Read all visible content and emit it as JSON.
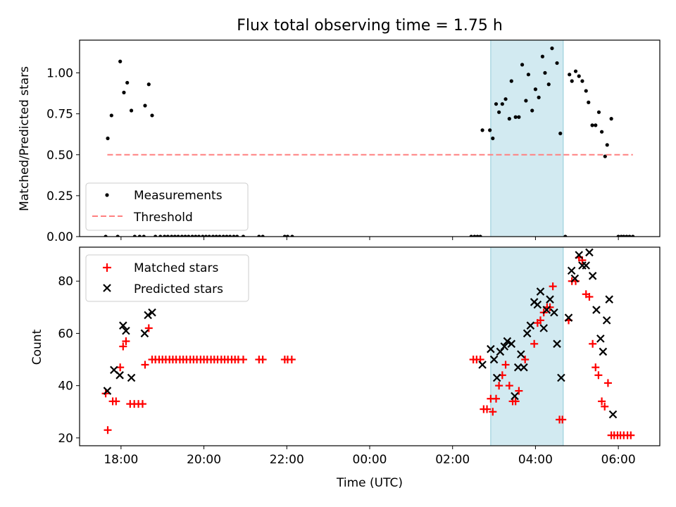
{
  "chart_data": [
    {
      "type": "scatter",
      "title": "Flux total observing time = 1.75 h",
      "xlabel": "",
      "ylabel": "Matched/Predicted stars",
      "x_unit": "hours of observing night, tick 18:00 = 18",
      "xlim": [
        17.0,
        31.0
      ],
      "ylim": [
        0.0,
        1.2
      ],
      "yticks": [
        0.0,
        0.25,
        0.5,
        0.75,
        1.0
      ],
      "ytick_labels": [
        "0.00",
        "0.25",
        "0.50",
        "0.75",
        "1.00"
      ],
      "shaded_region": {
        "x": [
          26.92,
          28.67
        ],
        "color": "#add8e6"
      },
      "legend": {
        "position": "lower-left",
        "entries": [
          "Measurements",
          "Threshold"
        ]
      },
      "series": [
        {
          "name": "Measurements",
          "marker": "dot",
          "color": "#000000",
          "points": [
            [
              17.63,
              0.0
            ],
            [
              17.92,
              0.0
            ],
            [
              18.33,
              0.0
            ],
            [
              18.45,
              0.0
            ],
            [
              18.55,
              0.0
            ],
            [
              18.83,
              0.0
            ],
            [
              18.95,
              0.0
            ],
            [
              19.05,
              0.0
            ],
            [
              19.13,
              0.0
            ],
            [
              19.22,
              0.0
            ],
            [
              19.3,
              0.0
            ],
            [
              19.38,
              0.0
            ],
            [
              19.47,
              0.0
            ],
            [
              19.55,
              0.0
            ],
            [
              19.63,
              0.0
            ],
            [
              19.72,
              0.0
            ],
            [
              19.8,
              0.0
            ],
            [
              19.88,
              0.0
            ],
            [
              19.97,
              0.0
            ],
            [
              20.05,
              0.0
            ],
            [
              20.13,
              0.0
            ],
            [
              20.22,
              0.0
            ],
            [
              20.3,
              0.0
            ],
            [
              20.38,
              0.0
            ],
            [
              20.47,
              0.0
            ],
            [
              20.55,
              0.0
            ],
            [
              20.63,
              0.0
            ],
            [
              20.72,
              0.0
            ],
            [
              20.8,
              0.0
            ],
            [
              20.95,
              0.0
            ],
            [
              21.33,
              0.0
            ],
            [
              21.42,
              0.0
            ],
            [
              21.95,
              0.0
            ],
            [
              22.02,
              0.0
            ],
            [
              22.13,
              0.0
            ],
            [
              26.45,
              0.0
            ],
            [
              26.53,
              0.0
            ],
            [
              26.6,
              0.0
            ],
            [
              26.67,
              0.0
            ],
            [
              28.72,
              0.0
            ],
            [
              30.0,
              0.0
            ],
            [
              30.07,
              0.0
            ],
            [
              30.13,
              0.0
            ],
            [
              30.2,
              0.0
            ],
            [
              30.27,
              0.0
            ],
            [
              30.35,
              0.0
            ],
            [
              17.68,
              0.6
            ],
            [
              17.77,
              0.74
            ],
            [
              17.98,
              1.07
            ],
            [
              18.07,
              0.88
            ],
            [
              18.15,
              0.94
            ],
            [
              18.25,
              0.77
            ],
            [
              18.58,
              0.8
            ],
            [
              18.67,
              0.93
            ],
            [
              18.75,
              0.74
            ],
            [
              26.72,
              0.65
            ],
            [
              26.9,
              0.65
            ],
            [
              26.97,
              0.6
            ],
            [
              27.05,
              0.81
            ],
            [
              27.12,
              0.76
            ],
            [
              27.2,
              0.81
            ],
            [
              27.28,
              0.84
            ],
            [
              27.37,
              0.72
            ],
            [
              27.42,
              0.95
            ],
            [
              27.52,
              0.73
            ],
            [
              27.6,
              0.73
            ],
            [
              27.68,
              1.05
            ],
            [
              27.77,
              0.83
            ],
            [
              27.83,
              0.99
            ],
            [
              27.92,
              0.77
            ],
            [
              28.0,
              0.9
            ],
            [
              28.08,
              0.85
            ],
            [
              28.17,
              1.1
            ],
            [
              28.23,
              1.0
            ],
            [
              28.32,
              0.93
            ],
            [
              28.4,
              1.15
            ],
            [
              28.52,
              1.06
            ],
            [
              28.6,
              0.63
            ],
            [
              28.82,
              0.99
            ],
            [
              28.88,
              0.95
            ],
            [
              28.97,
              1.01
            ],
            [
              29.05,
              0.98
            ],
            [
              29.13,
              0.95
            ],
            [
              29.22,
              0.89
            ],
            [
              29.28,
              0.82
            ],
            [
              29.37,
              0.68
            ],
            [
              29.45,
              0.68
            ],
            [
              29.53,
              0.76
            ],
            [
              29.6,
              0.64
            ],
            [
              29.68,
              0.49
            ],
            [
              29.73,
              0.56
            ],
            [
              29.83,
              0.72
            ]
          ]
        },
        {
          "name": "Threshold",
          "style": "dashed",
          "color": "#ff8080",
          "x": [
            17.67,
            30.35
          ],
          "y": [
            0.5,
            0.5
          ]
        }
      ]
    },
    {
      "type": "scatter",
      "title": "",
      "xlabel": "Time (UTC)",
      "ylabel": "Count",
      "x_unit": "hours of observing night, tick 18:00 = 18",
      "xlim": [
        17.0,
        31.0
      ],
      "ylim": [
        17.0,
        93.0
      ],
      "yticks": [
        20,
        40,
        60,
        80
      ],
      "ytick_labels": [
        "20",
        "40",
        "60",
        "80"
      ],
      "xticks": [
        18,
        20,
        22,
        24,
        26,
        28,
        30
      ],
      "xtick_labels": [
        "18:00",
        "20:00",
        "22:00",
        "00:00",
        "02:00",
        "04:00",
        "06:00"
      ],
      "shaded_region": {
        "x": [
          26.92,
          28.67
        ],
        "color": "#add8e6"
      },
      "legend": {
        "position": "upper-left",
        "entries": [
          "Matched stars",
          "Predicted stars"
        ]
      },
      "series": [
        {
          "name": "Matched stars",
          "marker": "plus",
          "color": "#ff0000",
          "points": [
            [
              17.63,
              37
            ],
            [
              17.68,
              23
            ],
            [
              17.8,
              34
            ],
            [
              17.88,
              34
            ],
            [
              17.98,
              47
            ],
            [
              18.05,
              55
            ],
            [
              18.12,
              57
            ],
            [
              18.22,
              33
            ],
            [
              18.32,
              33
            ],
            [
              18.42,
              33
            ],
            [
              18.52,
              33
            ],
            [
              18.58,
              48
            ],
            [
              18.67,
              62
            ],
            [
              18.75,
              50
            ],
            [
              18.83,
              50
            ],
            [
              18.92,
              50
            ],
            [
              19.0,
              50
            ],
            [
              19.08,
              50
            ],
            [
              19.17,
              50
            ],
            [
              19.25,
              50
            ],
            [
              19.33,
              50
            ],
            [
              19.42,
              50
            ],
            [
              19.5,
              50
            ],
            [
              19.58,
              50
            ],
            [
              19.67,
              50
            ],
            [
              19.75,
              50
            ],
            [
              19.83,
              50
            ],
            [
              19.92,
              50
            ],
            [
              20.0,
              50
            ],
            [
              20.08,
              50
            ],
            [
              20.17,
              50
            ],
            [
              20.25,
              50
            ],
            [
              20.33,
              50
            ],
            [
              20.42,
              50
            ],
            [
              20.5,
              50
            ],
            [
              20.58,
              50
            ],
            [
              20.67,
              50
            ],
            [
              20.75,
              50
            ],
            [
              20.83,
              50
            ],
            [
              20.95,
              50
            ],
            [
              21.33,
              50
            ],
            [
              21.42,
              50
            ],
            [
              21.95,
              50
            ],
            [
              22.02,
              50
            ],
            [
              22.12,
              50
            ],
            [
              26.5,
              50
            ],
            [
              26.58,
              50
            ],
            [
              26.67,
              50
            ],
            [
              26.75,
              31
            ],
            [
              26.83,
              31
            ],
            [
              26.92,
              35
            ],
            [
              26.97,
              30
            ],
            [
              27.05,
              35
            ],
            [
              27.12,
              40
            ],
            [
              27.2,
              44
            ],
            [
              27.28,
              48
            ],
            [
              27.37,
              40
            ],
            [
              27.45,
              34
            ],
            [
              27.52,
              34
            ],
            [
              27.6,
              38
            ],
            [
              27.75,
              50
            ],
            [
              27.97,
              56
            ],
            [
              28.05,
              64
            ],
            [
              28.12,
              65
            ],
            [
              28.2,
              68
            ],
            [
              28.28,
              70
            ],
            [
              28.35,
              70
            ],
            [
              28.42,
              78
            ],
            [
              28.58,
              27
            ],
            [
              28.65,
              27
            ],
            [
              28.8,
              65
            ],
            [
              28.88,
              80
            ],
            [
              28.97,
              80
            ],
            [
              29.05,
              89
            ],
            [
              29.13,
              88
            ],
            [
              29.22,
              75
            ],
            [
              29.3,
              74
            ],
            [
              29.38,
              56
            ],
            [
              29.45,
              47
            ],
            [
              29.52,
              44
            ],
            [
              29.6,
              34
            ],
            [
              29.67,
              32
            ],
            [
              29.75,
              41
            ],
            [
              29.83,
              21
            ],
            [
              29.9,
              21
            ],
            [
              29.98,
              21
            ],
            [
              30.05,
              21
            ],
            [
              30.13,
              21
            ],
            [
              30.22,
              21
            ],
            [
              30.3,
              21
            ]
          ]
        },
        {
          "name": "Predicted stars",
          "marker": "x",
          "color": "#000000",
          "points": [
            [
              17.67,
              38
            ],
            [
              17.83,
              46
            ],
            [
              17.97,
              44
            ],
            [
              18.05,
              63
            ],
            [
              18.12,
              61
            ],
            [
              18.25,
              43
            ],
            [
              18.57,
              60
            ],
            [
              18.65,
              67
            ],
            [
              18.75,
              68
            ],
            [
              26.72,
              48
            ],
            [
              26.92,
              54
            ],
            [
              27.0,
              50
            ],
            [
              27.07,
              43
            ],
            [
              27.15,
              53
            ],
            [
              27.25,
              55
            ],
            [
              27.32,
              57
            ],
            [
              27.42,
              56
            ],
            [
              27.5,
              36
            ],
            [
              27.58,
              47
            ],
            [
              27.65,
              52
            ],
            [
              27.72,
              47
            ],
            [
              27.8,
              60
            ],
            [
              27.88,
              63
            ],
            [
              27.97,
              72
            ],
            [
              28.05,
              71
            ],
            [
              28.12,
              76
            ],
            [
              28.2,
              62
            ],
            [
              28.27,
              69
            ],
            [
              28.35,
              73
            ],
            [
              28.45,
              68
            ],
            [
              28.52,
              56
            ],
            [
              28.62,
              43
            ],
            [
              28.8,
              66
            ],
            [
              28.87,
              84
            ],
            [
              28.95,
              81
            ],
            [
              29.05,
              90
            ],
            [
              29.13,
              86
            ],
            [
              29.22,
              86
            ],
            [
              29.3,
              91
            ],
            [
              29.38,
              82
            ],
            [
              29.47,
              69
            ],
            [
              29.57,
              58
            ],
            [
              29.63,
              53
            ],
            [
              29.72,
              65
            ],
            [
              29.78,
              73
            ],
            [
              29.87,
              29
            ]
          ]
        }
      ]
    }
  ]
}
